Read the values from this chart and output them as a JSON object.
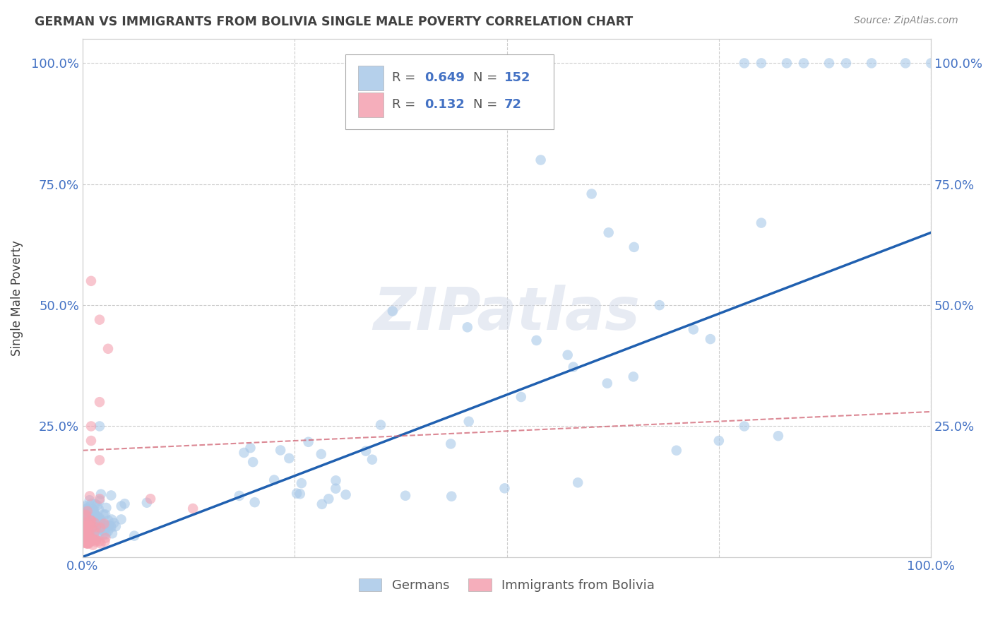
{
  "title": "GERMAN VS IMMIGRANTS FROM BOLIVIA SINGLE MALE POVERTY CORRELATION CHART",
  "source": "Source: ZipAtlas.com",
  "ylabel": "Single Male Poverty",
  "xlim": [
    0,
    1.0
  ],
  "ylim": [
    -0.02,
    1.05
  ],
  "german_color": "#a8c8e8",
  "bolivia_color": "#f4a0b0",
  "german_R": 0.649,
  "german_N": 152,
  "bolivia_R": 0.132,
  "bolivia_N": 72,
  "german_line_color": "#2060b0",
  "bolivia_line_color": "#d06070",
  "watermark": "ZIPatlas",
  "legend_label_german": "Germans",
  "legend_label_bolivia": "Immigrants from Bolivia",
  "background_color": "#ffffff",
  "grid_color": "#cccccc",
  "title_color": "#404040",
  "tick_color": "#4472c4",
  "legend_text_color": "#555555",
  "source_color": "#888888",
  "german_line_slope": 0.67,
  "german_line_intercept": -0.02,
  "bolivia_line_slope": 0.08,
  "bolivia_line_intercept": 0.2
}
